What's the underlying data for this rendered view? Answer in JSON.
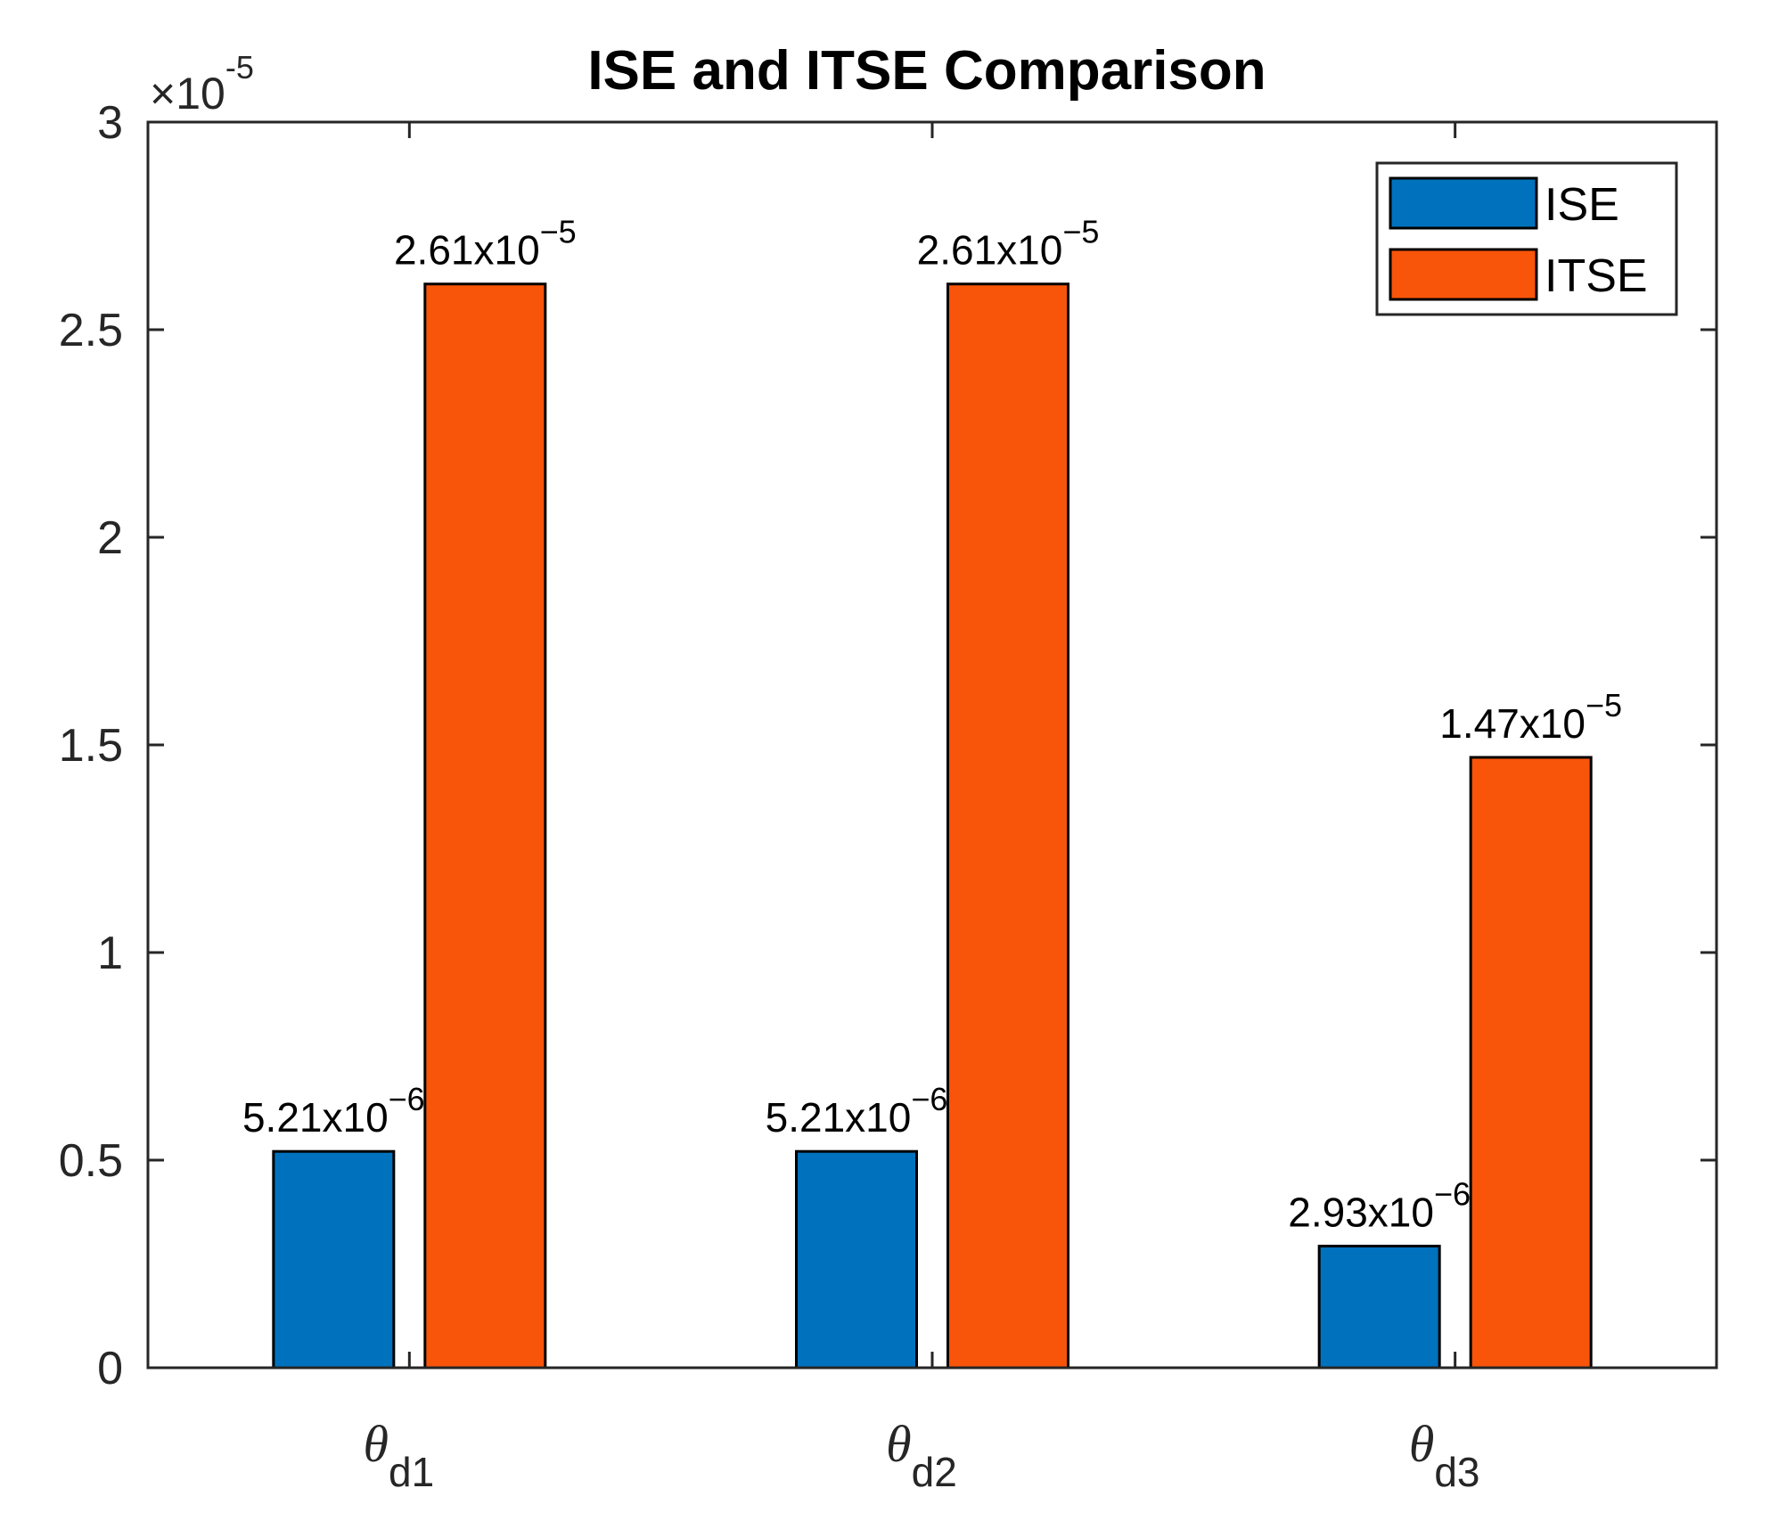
{
  "chart_data": {
    "type": "bar",
    "title": "ISE and ITSE Comparison",
    "xlabel": "",
    "ylabel": "",
    "categories": [
      {
        "symbol": "θ",
        "sub": "d1"
      },
      {
        "symbol": "θ",
        "sub": "d2"
      },
      {
        "symbol": "θ",
        "sub": "d3"
      }
    ],
    "series": [
      {
        "name": "ISE",
        "color": "#0072BD",
        "values": [
          0.521,
          0.521,
          0.293
        ],
        "labels": [
          {
            "mantissa": "5.21x10",
            "exp": "−6"
          },
          {
            "mantissa": "5.21x10",
            "exp": "−6"
          },
          {
            "mantissa": "2.93x10",
            "exp": "−6"
          }
        ]
      },
      {
        "name": "ITSE",
        "color": "#F8540A",
        "values": [
          2.61,
          2.61,
          1.47
        ],
        "labels": [
          {
            "mantissa": "2.61x10",
            "exp": "−5"
          },
          {
            "mantissa": "2.61x10",
            "exp": "−5"
          },
          {
            "mantissa": "1.47x10",
            "exp": "−5"
          }
        ]
      }
    ],
    "ylim": [
      0,
      3
    ],
    "yticks": [
      0,
      0.5,
      1,
      1.5,
      2,
      2.5,
      3
    ],
    "ytick_labels": [
      "0",
      "0.5",
      "1",
      "1.5",
      "2",
      "2.5",
      "3"
    ],
    "y_exponent": {
      "times": "×10",
      "exp": "-5"
    },
    "legend": {
      "position": "top-right",
      "entries": [
        "ISE",
        "ITSE"
      ]
    },
    "grid": false
  }
}
